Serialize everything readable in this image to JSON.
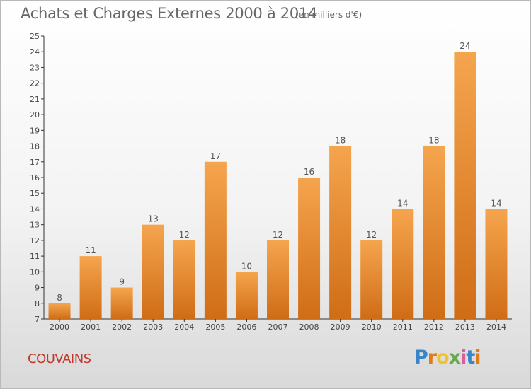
{
  "title": "Achats et Charges Externes 2000 à 2014",
  "subtitle": "(en milliers d'€)",
  "commune": "COUVAINS",
  "logo": {
    "letters": [
      "P",
      "r",
      "o",
      "x",
      "i",
      "t",
      "i"
    ],
    "colors": [
      "#3a84c9",
      "#e07b1a",
      "#f2c12e",
      "#6aa84f",
      "#e05a9e",
      "#3a84c9",
      "#e07b1a"
    ]
  },
  "chart_data": {
    "type": "bar",
    "categories": [
      "2000",
      "2001",
      "2002",
      "2003",
      "2004",
      "2005",
      "2006",
      "2007",
      "2008",
      "2009",
      "2010",
      "2011",
      "2012",
      "2013",
      "2014"
    ],
    "values": [
      8,
      11,
      9,
      13,
      12,
      17,
      10,
      12,
      16,
      18,
      12,
      14,
      18,
      24,
      14
    ],
    "ylim": [
      7,
      25
    ],
    "yticks": [
      7,
      8,
      9,
      10,
      11,
      12,
      13,
      14,
      15,
      16,
      17,
      18,
      19,
      20,
      21,
      22,
      23,
      24,
      25
    ],
    "grid": false,
    "bar_color": "#f0983f",
    "axis_color": "#333333"
  }
}
